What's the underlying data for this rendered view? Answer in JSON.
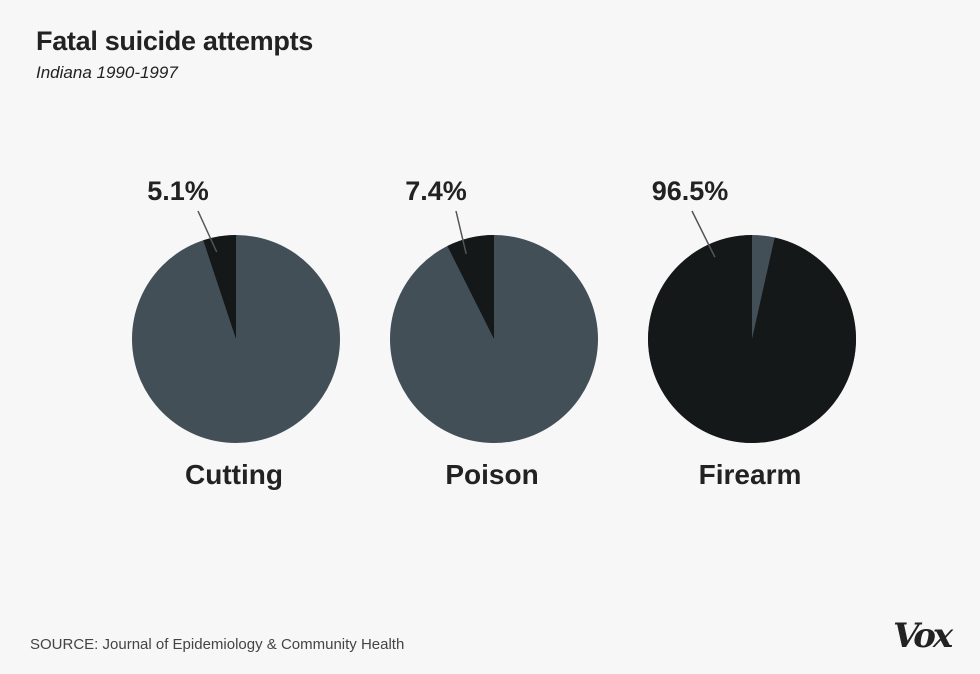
{
  "header": {
    "title": "Fatal suicide attempts",
    "subtitle": "Indiana 1990-1997"
  },
  "colors": {
    "fatal": "#141819",
    "nonfatal": "#434f57",
    "text": "#222222",
    "background": "#f7f7f7"
  },
  "chart_data": {
    "type": "pie",
    "title": "Fatal suicide attempts",
    "subtitle": "Indiana 1990-1997",
    "charts": [
      {
        "category": "Cutting",
        "fatal_percent": 5.1,
        "label": "5.1%"
      },
      {
        "category": "Poison",
        "fatal_percent": 7.4,
        "label": "7.4%"
      },
      {
        "category": "Firearm",
        "fatal_percent": 96.5,
        "label": "96.5%"
      }
    ]
  },
  "footer": {
    "source": "SOURCE: Journal of Epidemiology & Community Health",
    "logo": "Vox"
  }
}
